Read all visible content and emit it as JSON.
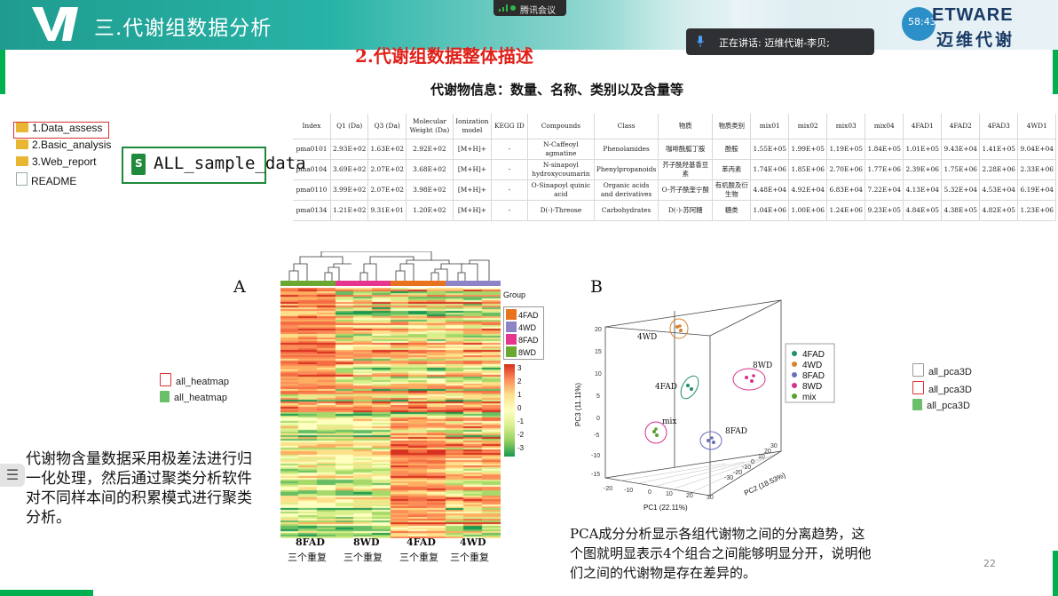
{
  "header": {
    "section_title": "三.代谢组数据分析",
    "brand": "ETWARE",
    "brand_cn": "迈维代谢",
    "time_badge": "58:43"
  },
  "meeting": {
    "app_label": "腾讯会议",
    "speaker_text": "正在讲话: 迈维代谢-李贝;"
  },
  "slide": {
    "title": "2.代谢组数据整体描述",
    "subtitle": "代谢物信息：数量、名称、类别以及含量等",
    "page_number": "22"
  },
  "files": {
    "items": [
      {
        "name": "1.Data_assess",
        "type": "folder"
      },
      {
        "name": "2.Basic_analysis",
        "type": "folder"
      },
      {
        "name": "3.Web_report",
        "type": "folder"
      },
      {
        "name": "README",
        "type": "file"
      }
    ],
    "excel_label": "ALL_sample_data",
    "excel_icon": "S"
  },
  "table": {
    "headers": [
      "Index",
      "Q1 (Da)",
      "Q3 (Da)",
      "Molecular Weight (Da)",
      "Ionization model",
      "KEGG ID",
      "Compounds",
      "Class",
      "物质",
      "物质类别",
      "mix01",
      "mix02",
      "mix03",
      "mix04",
      "4FAD1",
      "4FAD2",
      "4FAD3",
      "4WD1"
    ],
    "rows": [
      [
        "pma0101",
        "2.93E+02",
        "1.63E+02",
        "2.92E+02",
        "[M+H]+",
        "-",
        "N-Caffeoyl agmatine",
        "Phenolamides",
        "咖啡酰胍丁胺",
        "酚胺",
        "1.55E+05",
        "1.99E+05",
        "1.19E+05",
        "1.84E+05",
        "1.01E+05",
        "9.43E+04",
        "1.41E+05",
        "9.04E+04"
      ],
      [
        "pma0104",
        "3.69E+02",
        "2.07E+02",
        "3.68E+02",
        "[M+H]+",
        "-",
        "N-sinapoyl hydroxycoumarin",
        "Phenylpropanoids",
        "芥子酰羟基香豆素",
        "苯丙素",
        "1.74E+06",
        "1.85E+06",
        "2.70E+06",
        "1.77E+06",
        "2.39E+06",
        "1.75E+06",
        "2.28E+06",
        "2.33E+06"
      ],
      [
        "pma0110",
        "3.99E+02",
        "2.07E+02",
        "3.98E+02",
        "[M+H]+",
        "-",
        "O-Sinapoyl quinic acid",
        "Organic acids and derivatives",
        "O-芥子酰奎宁酸",
        "有机酸及衍生物",
        "4.48E+04",
        "4.92E+04",
        "6.83E+04",
        "7.22E+04",
        "4.13E+04",
        "5.32E+04",
        "4.53E+04",
        "6.19E+04"
      ],
      [
        "pma0134",
        "1.21E+02",
        "9.31E+01",
        "1.20E+02",
        "[M+H]+",
        "-",
        "D(-)-Threose",
        "Carbohydrates",
        "D(-)-苏阿糖",
        "糖类",
        "1.04E+06",
        "1.00E+06",
        "1.24E+06",
        "9.23E+05",
        "4.84E+05",
        "4.38E+05",
        "4.82E+05",
        "1.23E+06"
      ]
    ]
  },
  "heatmap": {
    "panel_label": "A",
    "group_title": "Group",
    "groups": [
      {
        "name": "4FAD",
        "color": "#e8731f"
      },
      {
        "name": "4WD",
        "color": "#8c84c4"
      },
      {
        "name": "8FAD",
        "color": "#e5358f"
      },
      {
        "name": "8WD",
        "color": "#6aa832"
      }
    ],
    "scale_ticks": [
      "3",
      "2",
      "1",
      "0",
      "-1",
      "-2",
      "-3"
    ],
    "columns": [
      {
        "label": "8FAD",
        "sub": "三个重复"
      },
      {
        "label": "8WD",
        "sub": "三个重复"
      },
      {
        "label": "4FAD",
        "sub": "三个重复"
      },
      {
        "label": "4WD",
        "sub": "三个重复"
      }
    ],
    "files": [
      "all_heatmap",
      "all_heatmap"
    ]
  },
  "pca": {
    "panel_label": "B",
    "xlabel": "PC1 (22.11%)",
    "ylabel": "PC3 (11.11%)",
    "zlabel": "PC2 (18.53%)",
    "legend": [
      {
        "name": "4FAD",
        "color": "#1e8f6b"
      },
      {
        "name": "4WD",
        "color": "#d9822b"
      },
      {
        "name": "8FAD",
        "color": "#6a6fbf"
      },
      {
        "name": "8WD",
        "color": "#d6308a"
      },
      {
        "name": "mix",
        "color": "#5aa02c"
      }
    ],
    "cluster_labels": [
      "4WD",
      "4FAD",
      "8WD",
      "mix",
      "8FAD"
    ],
    "x_ticks": [
      "-20",
      "-10",
      "0",
      "10",
      "20",
      "30"
    ],
    "y_ticks": [
      "20",
      "15",
      "10",
      "5",
      "0",
      "-5",
      "-10",
      "-15"
    ],
    "z_ticks": [
      "-30",
      "-20",
      "-10",
      "0",
      "10",
      "20",
      "30"
    ],
    "files": [
      "all_pca3D",
      "all_pca3D",
      "all_pca3D"
    ]
  },
  "text": {
    "left_desc": "代谢物含量数据采用极差法进行归一化处理，然后通过聚类分析软件对不同样本间的积累模式进行聚类分析。",
    "right_desc": "PCA成分分析显示各组代谢物之间的分离趋势，这个图就明显表示4个组合之间能够明显分开，说明他们之间的代谢物是存在差异的。"
  },
  "colors": {
    "accent_green": "#00b050",
    "title_red": "#e0211a",
    "header_teal": "#1f9c8f"
  }
}
